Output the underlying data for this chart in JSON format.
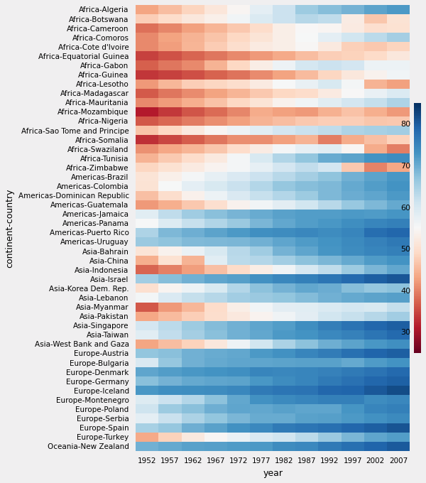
{
  "countries": [
    "Africa-Algeria",
    "Africa-Botswana",
    "Africa-Cameroon",
    "Africa-Comoros",
    "Africa-Cote d'Ivoire",
    "Africa-Equatorial Guinea",
    "Africa-Gabon",
    "Africa-Guinea",
    "Africa-Lesotho",
    "Africa-Madagascar",
    "Africa-Mauritania",
    "Africa-Mozambique",
    "Africa-Nigeria",
    "Africa-Sao Tome and Principe",
    "Africa-Somalia",
    "Africa-Swaziland",
    "Africa-Tunisia",
    "Africa-Zimbabwe",
    "Americas-Brazil",
    "Americas-Colombia",
    "Americas-Dominican Republic",
    "Americas-Guatemala",
    "Americas-Jamaica",
    "Americas-Panama",
    "Americas-Puerto Rico",
    "Americas-Uruguay",
    "Asia-Bahrain",
    "Asia-China",
    "Asia-Indonesia",
    "Asia-Israel",
    "Asia-Korea Dem. Rep.",
    "Asia-Lebanon",
    "Asia-Myanmar",
    "Asia-Pakistan",
    "Asia-Singapore",
    "Asia-Taiwan",
    "Asia-West Bank and Gaza",
    "Europe-Austria",
    "Europe-Bulgaria",
    "Europe-Denmark",
    "Europe-Germany",
    "Europe-Iceland",
    "Europe-Montenegro",
    "Europe-Poland",
    "Europe-Serbia",
    "Europe-Spain",
    "Europe-Turkey",
    "Oceania-New Zealand"
  ],
  "years": [
    1952,
    1957,
    1962,
    1967,
    1972,
    1977,
    1982,
    1987,
    1992,
    1997,
    2002,
    2007
  ],
  "data": {
    "Africa-Algeria": [
      43.1,
      45.7,
      48.3,
      51.4,
      54.5,
      58.0,
      61.4,
      65.8,
      67.7,
      69.2,
      71.0,
      72.3
    ],
    "Africa-Botswana": [
      47.6,
      49.6,
      51.5,
      53.3,
      56.0,
      59.3,
      61.5,
      63.6,
      62.7,
      52.6,
      46.6,
      50.7
    ],
    "Africa-Cameroon": [
      38.5,
      40.4,
      42.6,
      44.8,
      47.0,
      49.4,
      52.9,
      54.9,
      54.3,
      52.2,
      49.9,
      50.4
    ],
    "Africa-Comoros": [
      40.7,
      43.0,
      44.5,
      46.5,
      48.9,
      51.0,
      53.0,
      55.0,
      57.9,
      60.7,
      63.0,
      65.2
    ],
    "Africa-Cote d'Ivoire": [
      40.5,
      42.5,
      44.9,
      47.4,
      49.8,
      52.4,
      53.1,
      54.7,
      52.0,
      47.9,
      46.8,
      48.3
    ],
    "Africa-Equatorial Guinea": [
      34.6,
      35.9,
      37.5,
      38.9,
      40.5,
      42.0,
      43.7,
      45.7,
      47.5,
      48.2,
      49.3,
      51.6
    ],
    "Africa-Gabon": [
      37.0,
      38.9,
      40.5,
      44.6,
      48.7,
      52.8,
      56.6,
      60.2,
      61.4,
      60.5,
      56.8,
      56.7
    ],
    "Africa-Guinea": [
      33.6,
      34.6,
      35.7,
      37.2,
      38.8,
      40.8,
      42.9,
      45.6,
      48.6,
      51.5,
      53.7,
      56.0
    ],
    "Africa-Lesotho": [
      42.1,
      45.0,
      47.7,
      48.5,
      49.8,
      52.2,
      55.1,
      57.2,
      59.7,
      55.6,
      44.6,
      42.6
    ],
    "Africa-Madagascar": [
      36.7,
      38.9,
      40.8,
      42.9,
      44.9,
      46.9,
      48.9,
      49.4,
      52.2,
      54.9,
      57.3,
      59.4
    ],
    "Africa-Mauritania": [
      40.5,
      42.3,
      44.2,
      46.3,
      48.7,
      50.9,
      53.6,
      56.1,
      58.3,
      60.4,
      62.2,
      64.2
    ],
    "Africa-Mozambique": [
      31.3,
      33.8,
      36.2,
      38.1,
      40.3,
      43.8,
      42.8,
      42.1,
      44.3,
      46.3,
      44.0,
      42.1
    ],
    "Africa-Nigeria": [
      36.3,
      37.8,
      39.4,
      41.0,
      42.8,
      44.5,
      45.8,
      46.9,
      47.5,
      47.5,
      46.6,
      46.9
    ],
    "Africa-Sao Tome and Principe": [
      46.5,
      48.9,
      51.9,
      54.4,
      56.5,
      58.5,
      60.4,
      61.7,
      62.7,
      64.3,
      65.0,
      65.5
    ],
    "Africa-Somalia": [
      33.0,
      34.9,
      36.9,
      38.9,
      41.0,
      41.0,
      42.6,
      44.5,
      39.7,
      43.8,
      45.9,
      48.2
    ],
    "Africa-Swaziland": [
      41.4,
      43.4,
      44.9,
      46.6,
      49.6,
      52.5,
      55.6,
      57.7,
      58.5,
      54.3,
      43.9,
      39.6
    ],
    "Africa-Tunisia": [
      44.6,
      47.1,
      49.6,
      52.1,
      55.6,
      59.8,
      64.0,
      66.9,
      70.0,
      71.1,
      73.0,
      73.9
    ],
    "Africa-Zimbabwe": [
      48.5,
      50.5,
      52.4,
      53.9,
      55.6,
      57.7,
      60.4,
      62.4,
      60.4,
      46.8,
      40.0,
      43.5
    ],
    "Americas-Brazil": [
      50.9,
      53.3,
      55.7,
      57.6,
      59.5,
      61.5,
      63.3,
      65.2,
      67.1,
      69.4,
      71.0,
      72.4
    ],
    "Americas-Colombia": [
      50.6,
      55.1,
      57.9,
      59.9,
      61.6,
      63.8,
      66.7,
      67.8,
      68.4,
      70.3,
      71.7,
      72.9
    ],
    "Americas-Dominican Republic": [
      45.9,
      49.8,
      53.5,
      56.8,
      59.6,
      61.8,
      63.7,
      66.0,
      68.5,
      69.9,
      70.8,
      72.2
    ],
    "Americas-Guatemala": [
      42.0,
      44.1,
      46.9,
      50.0,
      53.7,
      56.0,
      58.1,
      60.8,
      63.4,
      66.3,
      68.4,
      70.3
    ],
    "Americas-Jamaica": [
      58.5,
      62.6,
      65.6,
      67.5,
      69.0,
      70.1,
      71.2,
      71.8,
      71.8,
      72.3,
      72.0,
      72.6
    ],
    "Americas-Panama": [
      55.2,
      59.2,
      61.8,
      64.1,
      66.2,
      68.7,
      70.5,
      71.8,
      72.5,
      73.7,
      74.7,
      75.5
    ],
    "Americas-Puerto Rico": [
      64.3,
      68.5,
      69.6,
      71.1,
      72.2,
      73.4,
      73.8,
      74.6,
      73.9,
      74.9,
      77.8,
      78.7
    ],
    "Americas-Uruguay": [
      66.1,
      67.0,
      68.3,
      68.5,
      68.7,
      69.5,
      70.8,
      71.9,
      72.9,
      74.2,
      75.3,
      76.4
    ],
    "Asia-Bahrain": [
      50.9,
      53.8,
      56.9,
      59.9,
      63.3,
      65.6,
      69.1,
      70.8,
      72.6,
      73.9,
      74.8,
      75.6
    ],
    "Asia-China": [
      44.0,
      50.5,
      44.5,
      58.4,
      63.1,
      63.9,
      65.5,
      67.3,
      68.7,
      70.4,
      72.0,
      73.0
    ],
    "Asia-Indonesia": [
      37.5,
      39.9,
      42.5,
      46.0,
      49.2,
      52.7,
      56.2,
      60.1,
      62.7,
      66.0,
      68.6,
      70.6
    ],
    "Asia-Israel": [
      65.4,
      67.8,
      69.4,
      70.8,
      71.6,
      73.1,
      74.5,
      75.6,
      76.9,
      78.3,
      79.7,
      80.7
    ],
    "Asia-Korea Dem. Rep.": [
      50.1,
      54.1,
      56.7,
      59.9,
      63.8,
      67.2,
      69.1,
      70.6,
      69.9,
      67.7,
      66.7,
      67.3
    ],
    "Asia-Lebanon": [
      55.9,
      59.5,
      62.1,
      63.6,
      65.4,
      66.1,
      66.8,
      67.9,
      69.3,
      70.3,
      71.0,
      71.6
    ],
    "Asia-Myanmar": [
      36.3,
      41.9,
      45.1,
      49.4,
      53.1,
      56.1,
      58.1,
      58.3,
      59.3,
      60.3,
      59.9,
      62.1
    ],
    "Asia-Pakistan": [
      43.4,
      45.6,
      47.7,
      49.8,
      51.9,
      54.0,
      56.2,
      58.2,
      60.8,
      61.8,
      63.6,
      65.5
    ],
    "Asia-Singapore": [
      60.4,
      63.2,
      65.8,
      67.9,
      69.5,
      70.8,
      71.8,
      73.6,
      75.8,
      77.2,
      78.8,
      79.7
    ],
    "Asia-Taiwan": [
      58.5,
      62.4,
      65.2,
      67.5,
      69.4,
      70.6,
      72.2,
      73.0,
      74.3,
      75.3,
      77.0,
      78.4
    ],
    "Asia-West Bank and Gaza": [
      43.2,
      45.7,
      48.1,
      51.6,
      56.5,
      60.8,
      64.4,
      67.4,
      69.7,
      71.1,
      72.4,
      73.4
    ],
    "Europe-Austria": [
      66.8,
      67.5,
      69.5,
      70.1,
      70.6,
      72.2,
      73.2,
      74.9,
      76.0,
      77.5,
      79.0,
      79.8
    ],
    "Europe-Bulgaria": [
      59.6,
      66.6,
      69.5,
      70.4,
      70.9,
      70.8,
      71.1,
      71.3,
      71.2,
      70.3,
      72.1,
      73.0
    ],
    "Europe-Denmark": [
      70.8,
      71.8,
      72.4,
      73.0,
      73.5,
      74.7,
      74.6,
      74.8,
      75.3,
      76.1,
      77.2,
      78.3
    ],
    "Europe-Germany": [
      67.5,
      69.1,
      70.3,
      70.8,
      71.0,
      72.5,
      73.8,
      74.8,
      76.1,
      77.3,
      78.7,
      79.4
    ],
    "Europe-Iceland": [
      72.5,
      73.5,
      73.7,
      73.9,
      74.5,
      76.1,
      76.9,
      77.2,
      78.8,
      79.0,
      80.5,
      81.8
    ],
    "Europe-Montenegro": [
      59.2,
      61.4,
      63.7,
      67.4,
      70.6,
      73.1,
      74.1,
      74.9,
      75.4,
      75.4,
      73.9,
      74.5
    ],
    "Europe-Poland": [
      61.3,
      65.8,
      67.6,
      69.6,
      70.9,
      70.7,
      71.3,
      70.9,
      70.9,
      72.8,
      74.7,
      75.6
    ],
    "Europe-Serbia": [
      58.0,
      61.7,
      64.5,
      66.9,
      68.7,
      70.2,
      70.2,
      71.2,
      71.6,
      72.2,
      73.2,
      74.0
    ],
    "Europe-Spain": [
      64.9,
      66.7,
      69.7,
      71.4,
      73.1,
      74.4,
      76.3,
      76.9,
      77.6,
      78.8,
      79.8,
      80.9
    ],
    "Europe-Turkey": [
      43.6,
      48.1,
      52.1,
      54.6,
      57.0,
      59.5,
      61.0,
      63.1,
      66.1,
      68.8,
      70.8,
      71.8
    ],
    "Oceania-New Zealand": [
      69.4,
      70.3,
      71.2,
      71.5,
      71.9,
      72.2,
      73.8,
      74.3,
      76.3,
      77.6,
      79.1,
      80.2
    ]
  },
  "xlabel": "year",
  "ylabel": "continent-country",
  "vmin": 25,
  "vmax": 85,
  "colorbar_ticks": [
    30,
    40,
    50,
    60,
    70,
    80
  ],
  "background_color": "#f0eff0",
  "tick_fontsize": 7.5,
  "label_fontsize": 9
}
